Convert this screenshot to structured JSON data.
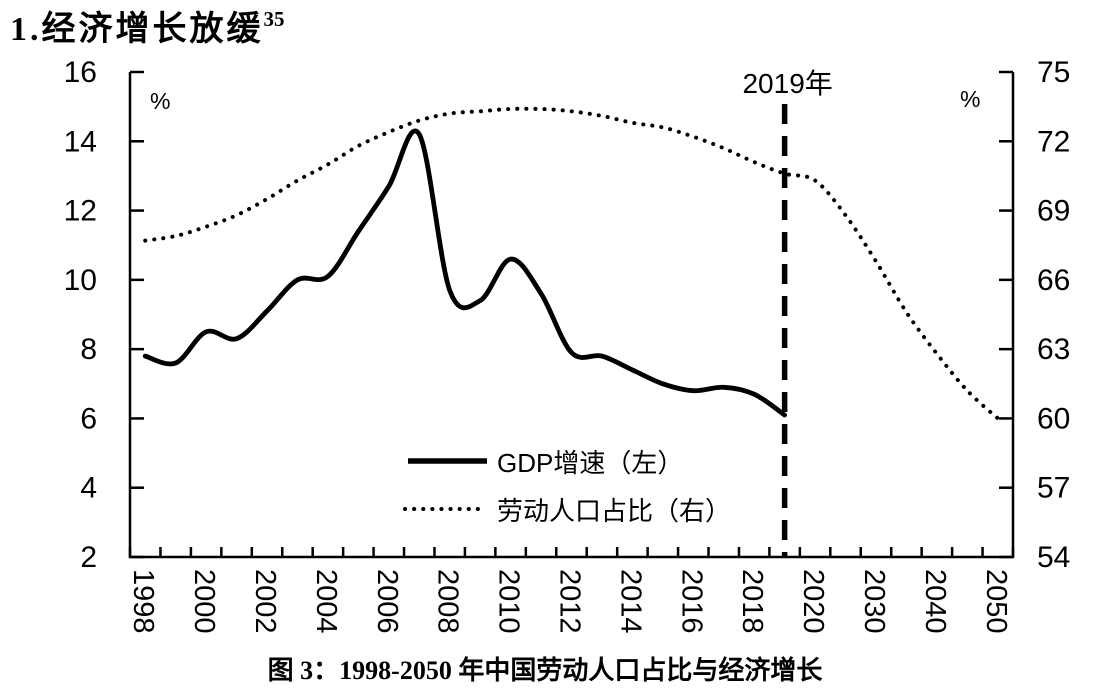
{
  "page": {
    "heading_text": "1.经济增长放缓",
    "heading_superscript": "35",
    "caption": "图 3：1998-2050 年中国劳动人口占比与经济增长"
  },
  "chart_data": {
    "type": "line",
    "background": "#ffffff",
    "line_color": "#000000",
    "left_axis": {
      "unit_label": "%",
      "min": 2,
      "max": 16,
      "tick_step": 2,
      "ticks": [
        16,
        14,
        12,
        10,
        8,
        6,
        4,
        2
      ]
    },
    "right_axis": {
      "unit_label": "%",
      "min": 54,
      "max": 75,
      "tick_step": 3,
      "ticks": [
        75,
        72,
        69,
        66,
        63,
        60,
        57,
        54
      ]
    },
    "x_axis": {
      "categories": [
        1998,
        1999,
        2000,
        2001,
        2002,
        2003,
        2004,
        2005,
        2006,
        2007,
        2008,
        2009,
        2010,
        2011,
        2012,
        2013,
        2014,
        2015,
        2016,
        2017,
        2018,
        2019,
        2020,
        2025,
        2030,
        2035,
        2040,
        2045,
        2050
      ],
      "tick_labels": [
        "1998",
        "2000",
        "2002",
        "2004",
        "2006",
        "2008",
        "2010",
        "2012",
        "2014",
        "2016",
        "2018",
        "2020",
        "2030",
        "2040",
        "2050"
      ],
      "labels_rotated_degrees": 90
    },
    "annotation": {
      "label": "2019年",
      "year": 2019
    },
    "legend_position": "inside-bottom-center",
    "grid": "off",
    "series": [
      {
        "name": "GDP增速（左）",
        "axis": "left",
        "style": "solid",
        "x": [
          1998,
          1999,
          2000,
          2001,
          2002,
          2003,
          2004,
          2005,
          2006,
          2007,
          2008,
          2009,
          2010,
          2011,
          2012,
          2013,
          2014,
          2015,
          2016,
          2017,
          2018,
          2019
        ],
        "values": [
          7.8,
          7.6,
          8.5,
          8.3,
          9.1,
          10.0,
          10.1,
          11.4,
          12.7,
          14.2,
          9.7,
          9.4,
          10.6,
          9.6,
          7.9,
          7.8,
          7.4,
          7.0,
          6.8,
          6.9,
          6.7,
          6.1
        ]
      },
      {
        "name": "劳动人口占比（右）",
        "axis": "right",
        "style": "dotted",
        "x": [
          1998,
          1999,
          2000,
          2001,
          2002,
          2003,
          2004,
          2005,
          2006,
          2007,
          2008,
          2009,
          2010,
          2011,
          2012,
          2013,
          2014,
          2015,
          2016,
          2017,
          2018,
          2019,
          2020,
          2025,
          2030,
          2035,
          2040,
          2045,
          2050
        ],
        "values": [
          67.7,
          67.9,
          68.3,
          68.8,
          69.5,
          70.3,
          71.0,
          71.8,
          72.4,
          72.9,
          73.2,
          73.3,
          73.4,
          73.4,
          73.3,
          73.1,
          72.8,
          72.6,
          72.2,
          71.7,
          71.1,
          70.6,
          70.3,
          68.8,
          66.8,
          64.6,
          62.8,
          61.2,
          60.0
        ]
      }
    ]
  }
}
